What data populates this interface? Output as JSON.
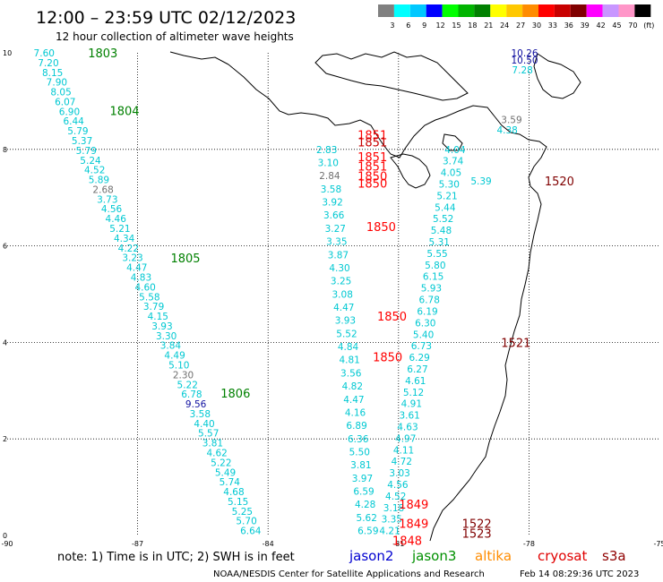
{
  "header": {
    "title": "12:00 – 23:59 UTC 02/12/2023",
    "subtitle": "12 hour collection of altimeter wave heights"
  },
  "scale": {
    "labels": [
      "3",
      "6",
      "9",
      "12",
      "15",
      "18",
      "21",
      "24",
      "27",
      "30",
      "33",
      "36",
      "39",
      "42",
      "45",
      "70",
      "(ft)"
    ],
    "colors": [
      "#808080",
      "#00ffff",
      "#00c8ff",
      "#0000ff",
      "#00ff00",
      "#00b400",
      "#008000",
      "#ffff00",
      "#ffc800",
      "#ff8c00",
      "#ff0000",
      "#c80000",
      "#800000",
      "#ff00ff",
      "#c896ff",
      "#ff96c8",
      "#000000"
    ]
  },
  "chart_data": {
    "type": "scatter",
    "xlim": [
      -90,
      -75
    ],
    "ylim": [
      0,
      10
    ],
    "x_ticks": [
      "-90",
      "-87",
      "-84",
      "-81",
      "-78",
      "-75"
    ],
    "y_ticks": [
      "0",
      "2",
      "4",
      "6",
      "8",
      "10"
    ],
    "grid": true,
    "legend": "bottom",
    "unit": "ft",
    "track_colors": {
      "cyan": "#00c8d2",
      "gray": "#707070",
      "blue": "#1010a0"
    },
    "tracks": [
      {
        "x0": -89.15,
        "y0": 10.0,
        "x1": -84.4,
        "y1": 0.1,
        "values": [
          "7.60",
          "7.20",
          "8.15",
          "7.90",
          "8.05",
          "6.07",
          "6.90",
          "6.44",
          "5.79",
          "5.37",
          "5.79",
          "5.24",
          "4.52",
          "5.89",
          "2.68",
          "3.73",
          "4.56",
          "4.46",
          "5.21",
          "4.34",
          "4.22",
          "3.23",
          "4.47",
          "4.83",
          "4.60",
          "5.58",
          "3.79",
          "4.15",
          "3.93",
          "3.30",
          "3.84",
          "4.49",
          "5.10",
          "2.30",
          "5.22",
          "6.78",
          "9.56",
          "3.58",
          "4.40",
          "5.57",
          "3.81",
          "4.62",
          "5.22",
          "5.49",
          "5.74",
          "4.68",
          "5.15",
          "5.25",
          "5.70",
          "6.64"
        ],
        "colors": {
          "14": "gray",
          "33": "gray",
          "36": "blue"
        }
      },
      {
        "x0": -82.65,
        "y0": 8.0,
        "x1": -81.7,
        "y1": 0.1,
        "values": [
          "2.83",
          "3.10",
          "2.84",
          "3.58",
          "3.92",
          "3.66",
          "3.27",
          "3.35",
          "3.87",
          "4.30",
          "3.25",
          "3.08",
          "4.47",
          "3.93",
          "5.52",
          "4.84",
          "4.81",
          "3.56",
          "4.82",
          "4.47",
          "4.16",
          "6.89",
          "6.36",
          "5.50",
          "3.81",
          "3.97",
          "6.59",
          "4.28",
          "5.62",
          "6.59"
        ],
        "colors": {
          "2": "gray"
        }
      },
      {
        "x0": -79.7,
        "y0": 8.0,
        "x1": -81.2,
        "y1": 0.1,
        "values": [
          "4.04",
          "3.74",
          "4.05",
          "5.30",
          "5.21",
          "5.44",
          "5.52",
          "5.48",
          "5.31",
          "5.55",
          "5.80",
          "6.15",
          "5.93",
          "6.78",
          "6.19",
          "6.30",
          "5.40",
          "6.73",
          "6.29",
          "6.27",
          "4.61",
          "5.12",
          "4.91",
          "3.61",
          "4.63",
          "4.97",
          "4.11",
          "4.72",
          "3.03",
          "4.56",
          "4.52",
          "3.18",
          "3.35",
          "4.21"
        ],
        "colors": {}
      }
    ],
    "extra_values": [
      {
        "x": -78.1,
        "y": 10.0,
        "text": "10.26",
        "color": "blue"
      },
      {
        "x": -78.1,
        "y": 9.85,
        "text": "10.50",
        "color": "blue"
      },
      {
        "x": -78.15,
        "y": 9.65,
        "text": "7.28",
        "color": "cyan"
      },
      {
        "x": -78.4,
        "y": 8.62,
        "text": "3.59",
        "color": "gray"
      },
      {
        "x": -78.5,
        "y": 8.4,
        "text": "4.38",
        "color": "cyan"
      },
      {
        "x": -79.1,
        "y": 7.35,
        "text": "5.39",
        "color": "cyan"
      }
    ],
    "time_labels": [
      {
        "text": "1803",
        "x": -87.8,
        "y": 10.0,
        "color": "#008000"
      },
      {
        "text": "1804",
        "x": -87.3,
        "y": 8.8,
        "color": "#008000"
      },
      {
        "text": "1805",
        "x": -85.9,
        "y": 5.75,
        "color": "#008000"
      },
      {
        "text": "1806",
        "x": -84.75,
        "y": 2.95,
        "color": "#008000"
      },
      {
        "text": "1851",
        "x": -81.6,
        "y": 8.3,
        "color": "#ff0000"
      },
      {
        "text": "1851",
        "x": -81.6,
        "y": 8.15,
        "color": "#c80000"
      },
      {
        "text": "1851",
        "x": -81.6,
        "y": 7.85,
        "color": "#ff0000"
      },
      {
        "text": "1851",
        "x": -81.6,
        "y": 7.65,
        "color": "#ff0000"
      },
      {
        "text": "1850",
        "x": -81.6,
        "y": 7.45,
        "color": "#ff0000"
      },
      {
        "text": "1850",
        "x": -81.6,
        "y": 7.3,
        "color": "#ff0000"
      },
      {
        "text": "1850",
        "x": -81.4,
        "y": 6.4,
        "color": "#ff0000"
      },
      {
        "text": "1850",
        "x": -81.15,
        "y": 4.55,
        "color": "#ff0000"
      },
      {
        "text": "1850",
        "x": -81.25,
        "y": 3.7,
        "color": "#ff0000"
      },
      {
        "text": "1849",
        "x": -80.65,
        "y": 0.65,
        "color": "#ff0000"
      },
      {
        "text": "1849",
        "x": -80.65,
        "y": 0.25,
        "color": "#ff0000"
      },
      {
        "text": "1848",
        "x": -80.8,
        "y": -0.1,
        "color": "#ff0000"
      },
      {
        "text": "1520",
        "x": -77.3,
        "y": 7.35,
        "color": "#800000"
      },
      {
        "text": "1521",
        "x": -78.3,
        "y": 4.0,
        "color": "#800000"
      },
      {
        "text": "1522",
        "x": -79.2,
        "y": 0.25,
        "color": "#800000"
      },
      {
        "text": "1523",
        "x": -79.2,
        "y": 0.05,
        "color": "#800000"
      }
    ]
  },
  "footer": {
    "note": "note:  1) Time is in UTC;  2) SWH is in feet",
    "satellites": [
      {
        "name": "jason2",
        "color": "#0000d0"
      },
      {
        "name": "jason3",
        "color": "#009000"
      },
      {
        "name": "altika",
        "color": "#ff8c00"
      },
      {
        "name": "cryosat",
        "color": "#e00000"
      },
      {
        "name": "s3a",
        "color": "#900000"
      }
    ],
    "credit": "NOAA/NESDIS Center for Satellite Applications and Research",
    "timestamp": "Feb 14 08:29:36 UTC 2023"
  }
}
